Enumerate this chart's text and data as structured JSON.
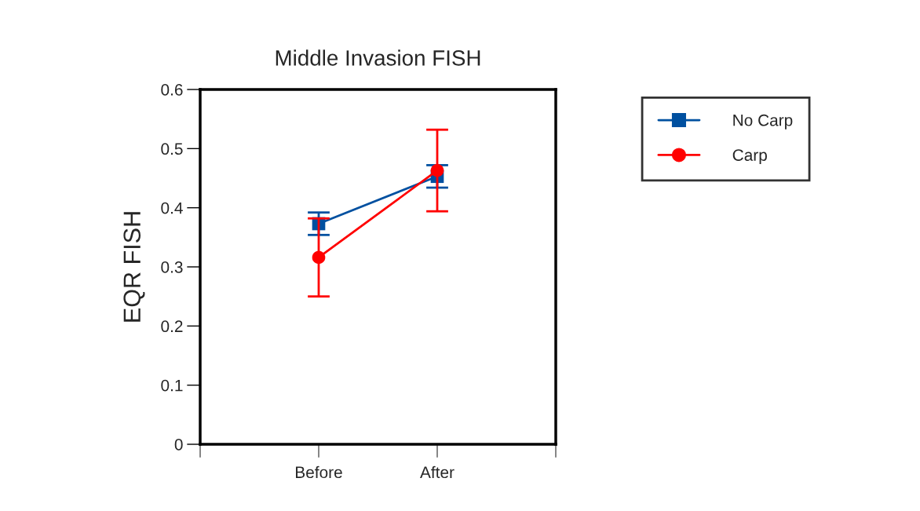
{
  "chart_data": {
    "type": "line",
    "title": "Middle Invasion FISH",
    "ylabel": "EQR FISH",
    "categories": [
      "Before",
      "After"
    ],
    "series": [
      {
        "name": "No Carp",
        "color": "#0050a0",
        "marker": "square",
        "values": [
          0.373,
          0.453
        ],
        "errors": [
          0.019,
          0.019
        ]
      },
      {
        "name": "Carp",
        "color": "#ff0000",
        "marker": "circle",
        "values": [
          0.316,
          0.463
        ],
        "errors": [
          0.066,
          0.069
        ]
      }
    ],
    "ylim": [
      0,
      0.6
    ],
    "yticks": [
      0,
      0.1,
      0.2,
      0.3,
      0.4,
      0.5,
      0.6
    ],
    "grid": false,
    "legend": "top right",
    "line_style": "solid"
  }
}
